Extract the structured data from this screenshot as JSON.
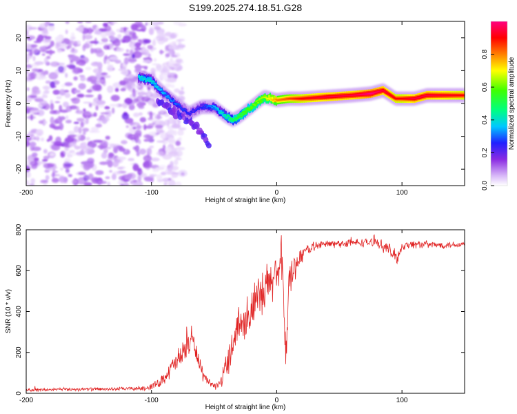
{
  "title": "S199.2025.274.18.51.G28",
  "chart_data": [
    {
      "type": "heatmap",
      "name": "spectrogram",
      "xlabel": "Height of straight line (km)",
      "ylabel": "Frequency (Hz)",
      "xlim": [
        -200,
        150
      ],
      "ylim": [
        -25,
        25
      ],
      "xticks": [
        -200,
        -100,
        0,
        100
      ],
      "xtick_labels": [
        "-200",
        "-100",
        "0",
        "100"
      ],
      "yticks": [
        -20,
        -10,
        0,
        10,
        20
      ],
      "ytick_labels": [
        "-20",
        "-10",
        "0",
        "10",
        "20"
      ],
      "colorbar": {
        "label": "Normalized spectral amplitude",
        "range": [
          0,
          1
        ],
        "ticks": [
          0.0,
          0.2,
          0.4,
          0.6,
          0.8
        ],
        "tick_labels": [
          "0.0",
          "0.2",
          "0.4",
          "0.6",
          "0.8"
        ]
      },
      "ridge": {
        "x": [
          -110,
          -100,
          -90,
          -80,
          -70,
          -60,
          -50,
          -40,
          -35,
          -30,
          -20,
          -10,
          0,
          10,
          20,
          40,
          60,
          75,
          85,
          95,
          100,
          110,
          120,
          150
        ],
        "y": [
          8,
          7,
          3,
          0,
          -3,
          -1,
          -1,
          -4,
          -5,
          -4,
          -1,
          2,
          1,
          1.5,
          1.5,
          2,
          2.5,
          3,
          4,
          1.5,
          1.5,
          1.5,
          2.5,
          2.5
        ],
        "amplitude": [
          0.35,
          0.35,
          0.3,
          0.25,
          0.2,
          0.2,
          0.3,
          0.4,
          0.45,
          0.5,
          0.55,
          0.6,
          0.75,
          0.8,
          0.85,
          0.9,
          0.9,
          0.95,
          0.9,
          0.85,
          0.85,
          0.9,
          0.9,
          0.85
        ]
      },
      "secondary_track": {
        "x": [
          -95,
          -85,
          -75,
          -65,
          -58,
          -54
        ],
        "y": [
          1,
          -2,
          -4,
          -7,
          -10,
          -14
        ]
      },
      "noise_region_x": [
        -200,
        -100
      ]
    },
    {
      "type": "line",
      "name": "snr",
      "xlabel": "Height of straight line (km)",
      "ylabel": "SNR (10 * v/v)",
      "xlim": [
        -200,
        150
      ],
      "ylim": [
        0,
        800
      ],
      "xticks": [
        -200,
        -100,
        0,
        100
      ],
      "xtick_labels": [
        "-200",
        "-100",
        "0",
        "100"
      ],
      "yticks": [
        0,
        200,
        400,
        600,
        800
      ],
      "ytick_labels": [
        "0",
        "200",
        "400",
        "600",
        "800"
      ],
      "color": "#e02020",
      "series": [
        {
          "name": "SNR",
          "x": [
            -200,
            -180,
            -160,
            -140,
            -120,
            -105,
            -95,
            -88,
            -82,
            -76,
            -72,
            -68,
            -64,
            -60,
            -56,
            -52,
            -48,
            -44,
            -40,
            -36,
            -32,
            -28,
            -24,
            -20,
            -16,
            -12,
            -8,
            -4,
            0,
            2,
            4,
            6,
            8,
            10,
            14,
            18,
            22,
            26,
            30,
            40,
            60,
            80,
            90,
            96,
            100,
            110,
            130,
            150
          ],
          "y": [
            15,
            18,
            20,
            20,
            22,
            25,
            45,
            90,
            140,
            180,
            230,
            270,
            200,
            100,
            60,
            40,
            35,
            60,
            150,
            220,
            330,
            340,
            390,
            400,
            440,
            470,
            500,
            560,
            600,
            580,
            650,
            350,
            250,
            550,
            620,
            660,
            690,
            710,
            720,
            730,
            735,
            740,
            700,
            660,
            720,
            730,
            725,
            730
          ],
          "spread": [
            10,
            10,
            10,
            10,
            10,
            15,
            25,
            40,
            60,
            80,
            90,
            80,
            60,
            40,
            25,
            20,
            20,
            40,
            80,
            100,
            120,
            130,
            130,
            140,
            150,
            160,
            160,
            160,
            150,
            150,
            150,
            150,
            150,
            130,
            90,
            60,
            40,
            30,
            25,
            25,
            25,
            25,
            40,
            40,
            25,
            25,
            20,
            20
          ]
        }
      ]
    }
  ]
}
